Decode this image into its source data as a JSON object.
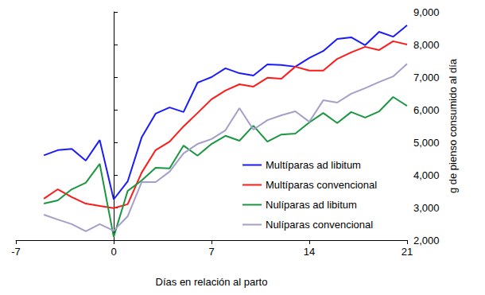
{
  "chart_data": {
    "type": "line",
    "x_label": "Días en relación al parto",
    "y_label": "g de pienso consumido al día",
    "x": [
      -5,
      -4,
      -3,
      -2,
      -1,
      0,
      1,
      2,
      3,
      4,
      5,
      6,
      7,
      8,
      9,
      10,
      11,
      12,
      13,
      14,
      15,
      16,
      17,
      18,
      19,
      20,
      21
    ],
    "series": [
      {
        "name": "Multíparas ad libitum",
        "color": "#1a1aff",
        "values": [
          4600,
          4760,
          4800,
          4440,
          5070,
          3250,
          3800,
          5150,
          5880,
          6070,
          5930,
          6830,
          7000,
          7270,
          7120,
          7050,
          7390,
          7370,
          7320,
          7590,
          7800,
          8170,
          8220,
          7980,
          8390,
          8240,
          8590
        ]
      },
      {
        "name": "Multíparas convencional",
        "color": "#ff1a1a",
        "values": [
          3270,
          3560,
          3320,
          3120,
          3050,
          2980,
          3100,
          4070,
          4760,
          5020,
          5490,
          5900,
          6320,
          6590,
          6780,
          6710,
          6980,
          6950,
          7320,
          7200,
          7200,
          7560,
          7760,
          7930,
          7830,
          8100,
          8000
        ]
      },
      {
        "name": "Nulíparas ad libitum",
        "color": "#1a9641",
        "values": [
          3120,
          3220,
          3560,
          3760,
          4340,
          2100,
          3510,
          3830,
          4220,
          4200,
          4900,
          4590,
          4950,
          5200,
          5050,
          5510,
          5020,
          5240,
          5270,
          5610,
          5900,
          5590,
          5930,
          5760,
          5950,
          6390,
          6120
        ]
      },
      {
        "name": "Nulíparas convencional",
        "color": "#a39fc8",
        "values": [
          2780,
          2630,
          2490,
          2270,
          2490,
          2290,
          2730,
          3780,
          3780,
          4100,
          4660,
          4950,
          5100,
          5370,
          6050,
          5390,
          5680,
          5830,
          5950,
          5630,
          6290,
          6220,
          6490,
          6660,
          6850,
          7020,
          7410
        ]
      }
    ],
    "xlim": [
      -7,
      21
    ],
    "xticks": [
      -7,
      0,
      7,
      14,
      21
    ],
    "ylim": [
      2000,
      9000
    ],
    "yticks": [
      2000,
      3000,
      4000,
      5000,
      6000,
      7000,
      8000,
      9000
    ],
    "grid": false,
    "legend": "lower right"
  }
}
